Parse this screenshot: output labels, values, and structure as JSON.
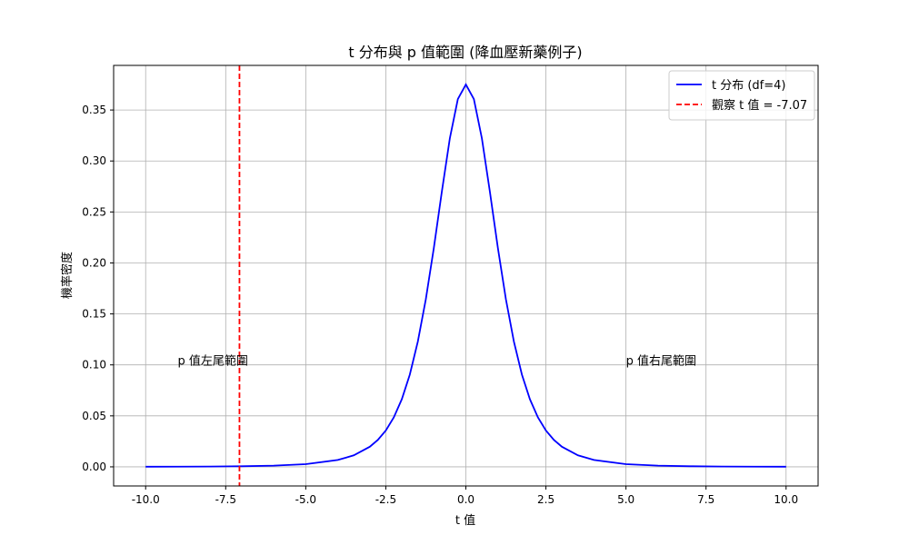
{
  "chart_data": {
    "type": "line",
    "title": "t 分布與 p 值範圍 (降血壓新藥例子)",
    "x_label": "t 值",
    "y_label": "機率密度",
    "series": [
      {
        "name": "t 分布 (df=4)",
        "color": "#0000ff",
        "x": [
          -10,
          -9,
          -8,
          -7,
          -6,
          -5,
          -4,
          -3.5,
          -3,
          -2.75,
          -2.5,
          -2.25,
          -2,
          -1.75,
          -1.5,
          -1.25,
          -1,
          -0.75,
          -0.5,
          -0.25,
          0,
          0.25,
          0.5,
          0.75,
          1,
          1.25,
          1.5,
          1.75,
          2,
          2.25,
          2.5,
          2.75,
          3,
          3.5,
          4,
          5,
          6,
          7,
          8,
          9,
          10
        ],
        "values": [
          0.00011,
          0.00018,
          0.00031,
          0.00059,
          0.00119,
          0.00265,
          0.00671,
          0.01128,
          0.01969,
          0.02639,
          0.03567,
          0.04854,
          0.06629,
          0.09053,
          0.12288,
          0.16445,
          0.21466,
          0.26989,
          0.32226,
          0.36074,
          0.375,
          0.36074,
          0.32226,
          0.26989,
          0.21466,
          0.16445,
          0.12288,
          0.09053,
          0.06629,
          0.04854,
          0.03567,
          0.02639,
          0.01969,
          0.01128,
          0.00671,
          0.00265,
          0.00119,
          0.00059,
          0.00031,
          0.00018,
          0.00011
        ]
      }
    ],
    "vline": {
      "name": "觀察 t 值 = -7.07",
      "x": -7.07,
      "color": "#ff0000",
      "style": "dashed"
    },
    "annotations": [
      {
        "text": "p 值左尾範圍",
        "x": -9,
        "y": 0.1
      },
      {
        "text": "p 值右尾範圍",
        "x": 5,
        "y": 0.1
      }
    ],
    "xlim": [
      -11,
      11
    ],
    "ylim": [
      -0.01875,
      0.39375
    ],
    "xticks": [
      {
        "value": -10,
        "label": "-10.0"
      },
      {
        "value": -7.5,
        "label": "-7.5"
      },
      {
        "value": -5,
        "label": "-5.0"
      },
      {
        "value": -2.5,
        "label": "-2.5"
      },
      {
        "value": 0,
        "label": "0.0"
      },
      {
        "value": 2.5,
        "label": "2.5"
      },
      {
        "value": 5,
        "label": "5.0"
      },
      {
        "value": 7.5,
        "label": "7.5"
      },
      {
        "value": 10,
        "label": "10.0"
      }
    ],
    "yticks": [
      {
        "value": 0,
        "label": "0.00"
      },
      {
        "value": 0.05,
        "label": "0.05"
      },
      {
        "value": 0.1,
        "label": "0.10"
      },
      {
        "value": 0.15,
        "label": "0.15"
      },
      {
        "value": 0.2,
        "label": "0.20"
      },
      {
        "value": 0.25,
        "label": "0.25"
      },
      {
        "value": 0.3,
        "label": "0.30"
      },
      {
        "value": 0.35,
        "label": "0.35"
      }
    ],
    "grid": true,
    "legend": "upper right"
  }
}
